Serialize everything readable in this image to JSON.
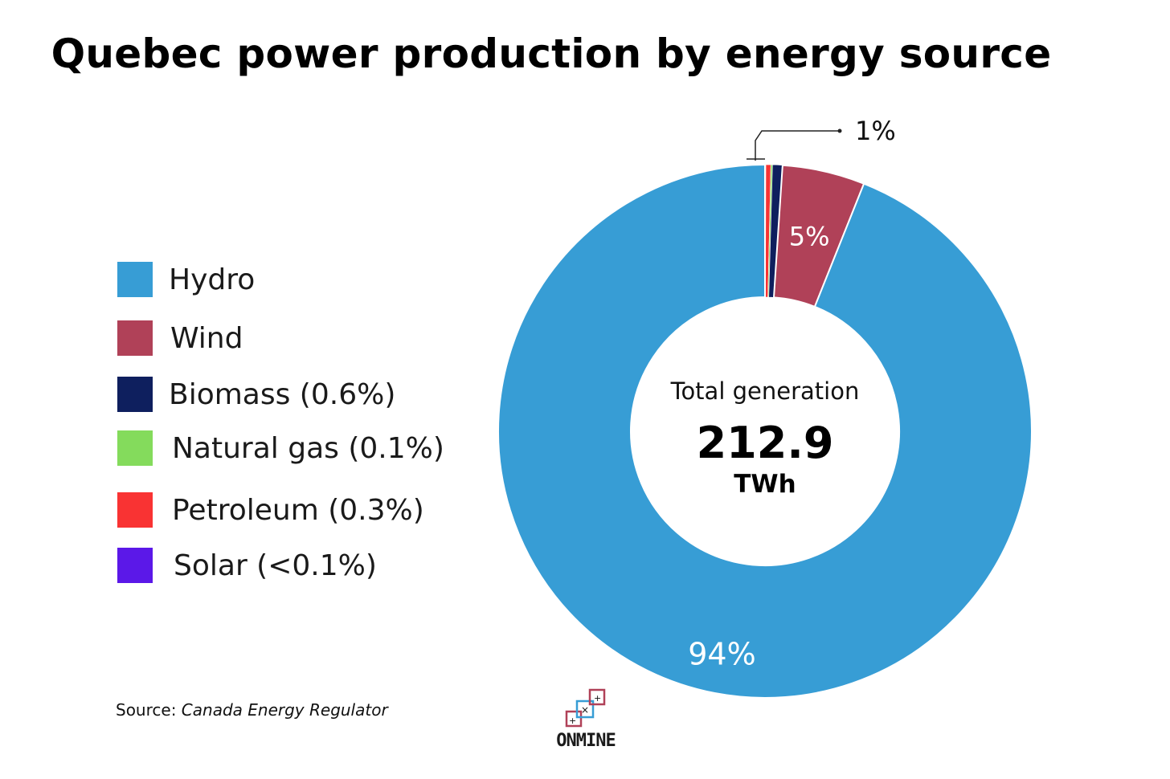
{
  "chart_data": {
    "type": "pie",
    "title": "Quebec power production by energy source",
    "donut": true,
    "center_label": {
      "caption": "Total generation",
      "value": "212.9",
      "unit": "TWh"
    },
    "legend_position": "left",
    "slices": [
      {
        "name": "Hydro",
        "legend_label": "Hydro",
        "value": 94.0,
        "label": "94%",
        "color": "#379DD5"
      },
      {
        "name": "Wind",
        "legend_label": "Wind",
        "value": 5.0,
        "label": "5%",
        "color": "#B04158"
      },
      {
        "name": "Biomass",
        "legend_label": "Biomass (0.6%)",
        "value": 0.6,
        "color": "#0E1F5E"
      },
      {
        "name": "Natural gas",
        "legend_label": "Natural gas (0.1%)",
        "value": 0.1,
        "color": "#84DB5C"
      },
      {
        "name": "Petroleum",
        "legend_label": "Petroleum (0.3%)",
        "value": 0.3,
        "color": "#F93333"
      },
      {
        "name": "Solar",
        "legend_label": "Solar (<0.1%)",
        "value": 0.05,
        "color": "#5B18E8"
      }
    ],
    "callout": {
      "text": "1%"
    },
    "source_prefix": "Source: ",
    "source_name": "Canada Energy Regulator"
  },
  "logo": {
    "text": "ONMINE"
  }
}
